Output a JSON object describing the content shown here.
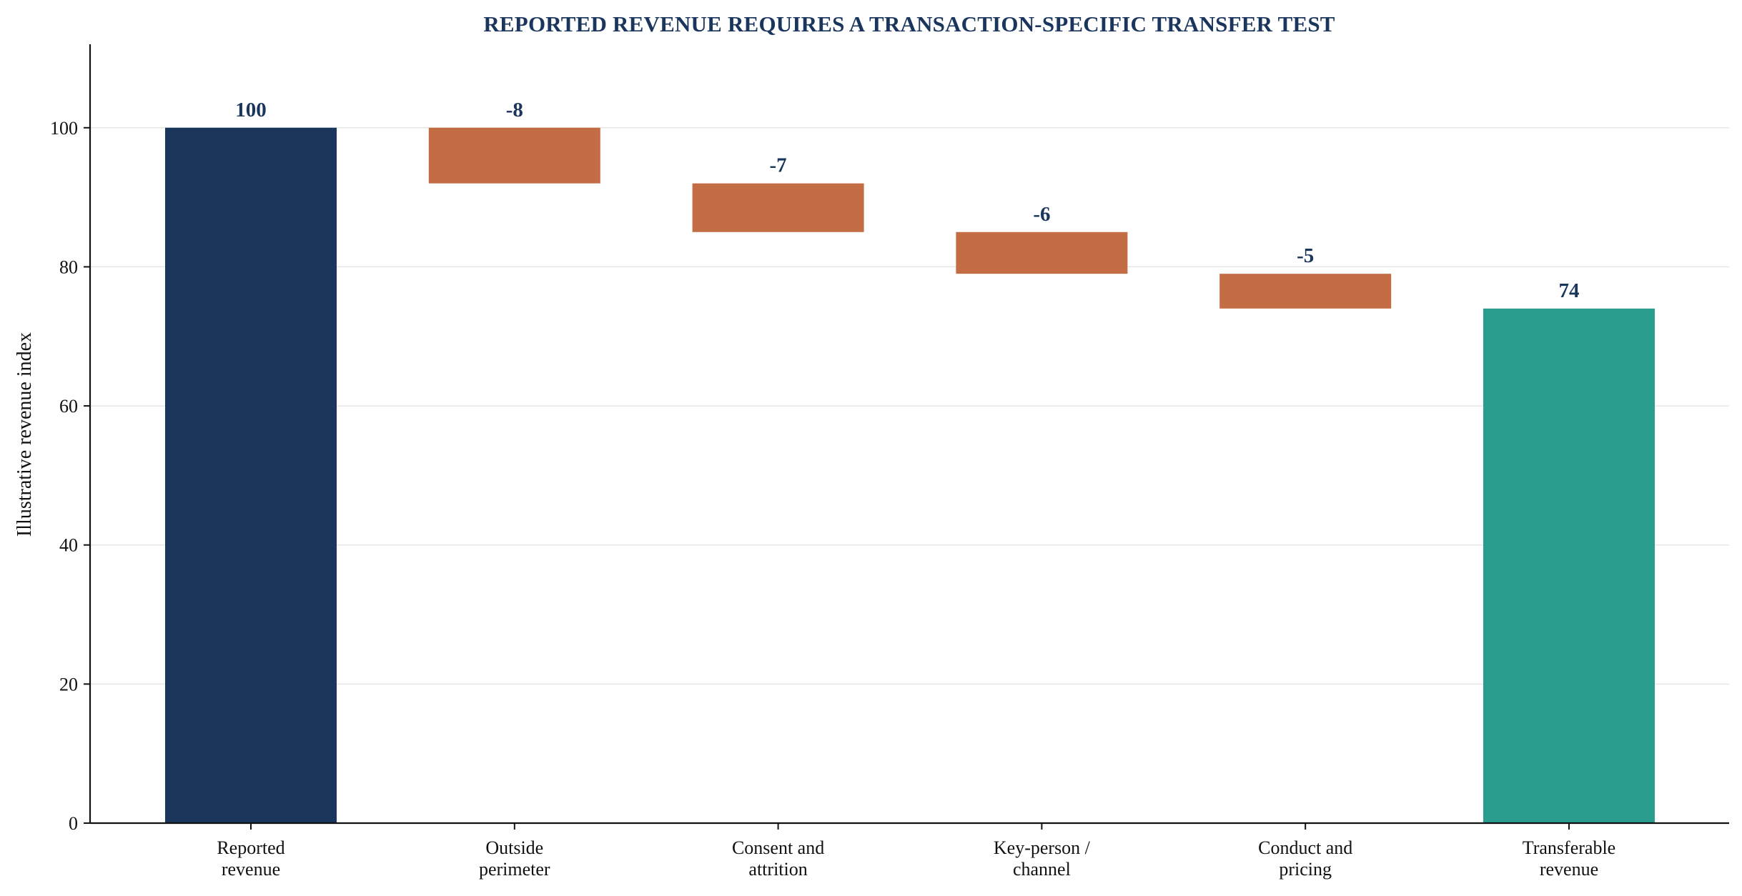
{
  "chart_data": {
    "type": "bar",
    "subtype": "waterfall",
    "title": "REPORTED REVENUE REQUIRES A TRANSACTION-SPECIFIC TRANSFER TEST",
    "xlabel": "",
    "ylabel": "Illustrative revenue index",
    "ylim": [
      0,
      112
    ],
    "yticks": [
      0,
      20,
      40,
      60,
      80,
      100
    ],
    "grid": "horizontal",
    "categories": [
      [
        "Reported",
        "revenue"
      ],
      [
        "Outside",
        "perimeter"
      ],
      [
        "Consent and",
        "attrition"
      ],
      [
        "Key-person /",
        "channel"
      ],
      [
        "Conduct and",
        "pricing"
      ],
      [
        "Transferable",
        "revenue"
      ]
    ],
    "bars": [
      {
        "kind": "total",
        "start": 0,
        "end": 100,
        "value": 100,
        "label": "100"
      },
      {
        "kind": "delta",
        "start": 100,
        "end": 92,
        "value": -8,
        "label": "-8"
      },
      {
        "kind": "delta",
        "start": 92,
        "end": 85,
        "value": -7,
        "label": "-7"
      },
      {
        "kind": "delta",
        "start": 85,
        "end": 79,
        "value": -6,
        "label": "-6"
      },
      {
        "kind": "delta",
        "start": 79,
        "end": 74,
        "value": -5,
        "label": "-5"
      },
      {
        "kind": "final",
        "start": 0,
        "end": 74,
        "value": 74,
        "label": "74"
      }
    ],
    "colors": {
      "total": "#1b365d",
      "delta": "#c46c43",
      "final": "#2a9d8f",
      "title": "#1b365d",
      "data_label": "#1b365d",
      "grid": "#e6e6e6",
      "axis": "#111111"
    }
  }
}
